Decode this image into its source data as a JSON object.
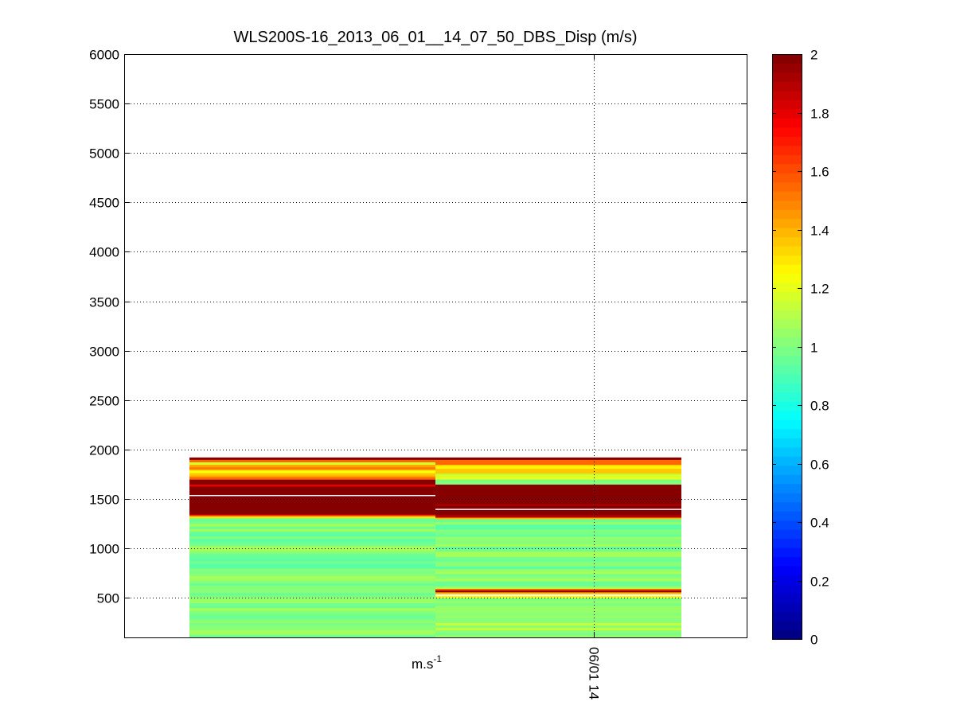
{
  "chart_data": {
    "type": "heatmap",
    "title": "WLS200S-16_2013_06_01__14_07_50_DBS_Disp (m/s)",
    "xlabel": "m.s-1",
    "xlabel_base": "m.s",
    "xlabel_sup": "-1",
    "ylabel": "",
    "ylim": [
      100,
      6000
    ],
    "yticks": [
      500,
      1000,
      1500,
      2000,
      2500,
      3000,
      3500,
      4000,
      4500,
      5000,
      5500,
      6000
    ],
    "xticks": [
      "06/01 14"
    ],
    "grid": true,
    "colormap": "jet",
    "clim": [
      0,
      2
    ],
    "colorbar_ticks": [
      "0",
      "0.2",
      "0.4",
      "0.6",
      "0.8",
      "1",
      "1.2",
      "1.4",
      "1.6",
      "1.8",
      "2"
    ],
    "bin_height_m": 25,
    "columns": [
      {
        "time_position": "left",
        "rows": [
          {
            "from": 100,
            "to": 1310,
            "value": 1.0
          },
          {
            "from": 1310,
            "to": 1330,
            "value": 1.35
          },
          {
            "from": 1330,
            "to": 1345,
            "value": 1.6
          },
          {
            "from": 1345,
            "to": 1530,
            "value": 2.0
          },
          {
            "from": 1530,
            "to": 1545,
            "value": null
          },
          {
            "from": 1545,
            "to": 1630,
            "value": 2.0
          },
          {
            "from": 1630,
            "to": 1650,
            "value": 1.85
          },
          {
            "from": 1650,
            "to": 1700,
            "value": 2.0
          },
          {
            "from": 1700,
            "to": 1740,
            "value": 1.5
          },
          {
            "from": 1740,
            "to": 1800,
            "value": 1.3
          },
          {
            "from": 1800,
            "to": 1850,
            "value": 1.45
          },
          {
            "from": 1850,
            "to": 1875,
            "value": 1.2
          },
          {
            "from": 1875,
            "to": 1900,
            "value": 1.5
          },
          {
            "from": 1900,
            "to": 1920,
            "value": 2.0
          }
        ]
      },
      {
        "time_position": "right",
        "rows": [
          {
            "from": 100,
            "to": 500,
            "value": 1.05
          },
          {
            "from": 500,
            "to": 520,
            "value": 1.25
          },
          {
            "from": 520,
            "to": 540,
            "value": null
          },
          {
            "from": 540,
            "to": 560,
            "value": 1.4
          },
          {
            "from": 560,
            "to": 580,
            "value": 1.9
          },
          {
            "from": 580,
            "to": 595,
            "value": 1.6
          },
          {
            "from": 595,
            "to": 1300,
            "value": 1.0
          },
          {
            "from": 1300,
            "to": 1315,
            "value": 1.4
          },
          {
            "from": 1315,
            "to": 1340,
            "value": 1.9
          },
          {
            "from": 1340,
            "to": 1390,
            "value": 2.0
          },
          {
            "from": 1390,
            "to": 1405,
            "value": null
          },
          {
            "from": 1405,
            "to": 1435,
            "value": 2.0
          },
          {
            "from": 1435,
            "to": 1455,
            "value": 1.85
          },
          {
            "from": 1455,
            "to": 1650,
            "value": 2.0
          },
          {
            "from": 1650,
            "to": 1700,
            "value": 1.0
          },
          {
            "from": 1700,
            "to": 1760,
            "value": 1.15
          },
          {
            "from": 1760,
            "to": 1850,
            "value": 1.3
          },
          {
            "from": 1850,
            "to": 1900,
            "value": 1.5
          },
          {
            "from": 1900,
            "to": 1920,
            "value": 2.0
          }
        ]
      }
    ]
  }
}
